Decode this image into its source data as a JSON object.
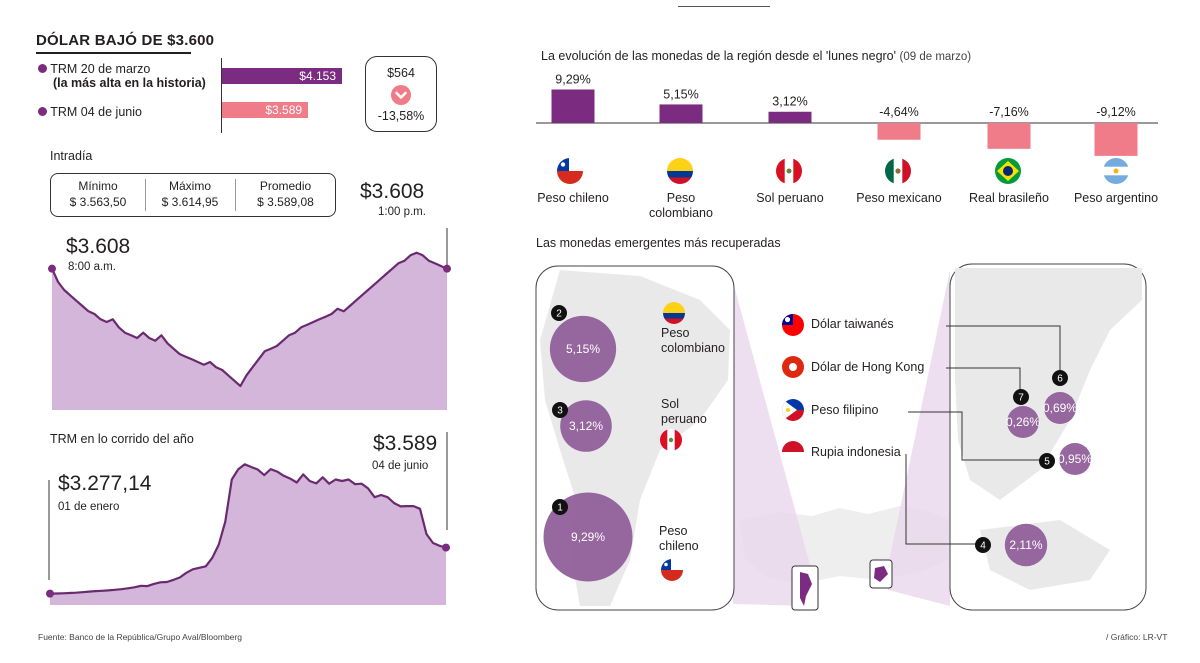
{
  "header": {
    "title": "DÓLAR BAJÓ DE $3.600",
    "trm_high_label_1": "TRM 20 de marzo",
    "trm_high_label_2": "(la más alta en la historia)",
    "trm_high_value": "$4.153",
    "trm_now_label": "TRM 04 de junio",
    "trm_now_value": "$3.589",
    "change_abs": "$564",
    "change_pct": "-13,58%"
  },
  "intraday": {
    "section_title": "Intradía",
    "stats": [
      {
        "label": "Mínimo",
        "value": "$ 3.563,50"
      },
      {
        "label": "Máximo",
        "value": "$ 3.614,95"
      },
      {
        "label": "Promedio",
        "value": "$ 3.589,08"
      }
    ],
    "start_value": "$3.608",
    "start_time": "8:00 a.m.",
    "end_value": "$3.608",
    "end_time": "1:00 p.m."
  },
  "ytd": {
    "section_title": "TRM en lo corrido del año",
    "start_value": "$3.277,14",
    "start_date": "01 de enero",
    "end_value": "$3.589",
    "end_date": "04 de junio"
  },
  "region": {
    "title": "La evolución de las monedas de la región desde el 'lunes negro'",
    "title_note": "(09 de marzo)"
  },
  "recovered": {
    "title": "Las monedas emergentes más recuperadas",
    "latam_labels": {
      "colombia": [
        "Peso",
        "colombiano"
      ],
      "peru": [
        "Sol",
        "peruano"
      ],
      "chile": [
        "Peso",
        "chileno"
      ]
    },
    "asia_labels": {
      "taiwan": "Dólar taiwanés",
      "hongkong": "Dólar de Hong Kong",
      "philippines": "Peso filipino",
      "indonesia": "Rupia indonesia"
    }
  },
  "footer": {
    "source": "Fuente: Banco de la República/Grupo Aval/Bloomberg",
    "credit": "/ Gráfico: LR-VT"
  },
  "colors": {
    "purple": "#7b2c80",
    "pink": "#f07b89",
    "area": "#d3b6d9",
    "bubble": "#8e5a97"
  },
  "chart_data": [
    {
      "type": "bar",
      "id": "trm_compare",
      "categories": [
        "TRM 20 de marzo",
        "TRM 04 de junio"
      ],
      "values": [
        4153,
        3589
      ],
      "labels": [
        "$4.153",
        "$3.589"
      ]
    },
    {
      "type": "area",
      "id": "intraday",
      "values": [
        3608,
        3603,
        3600,
        3598,
        3596,
        3594,
        3592,
        3591,
        3589,
        3588,
        3589,
        3586,
        3584,
        3583,
        3582,
        3584,
        3582,
        3581,
        3583,
        3580,
        3578,
        3576,
        3575,
        3574,
        3573,
        3572,
        3573,
        3571,
        3570,
        3568,
        3566,
        3564,
        3568,
        3571,
        3574,
        3577,
        3578,
        3579,
        3581,
        3583,
        3584,
        3586,
        3587,
        3588,
        3589,
        3590,
        3591,
        3593,
        3592,
        3594,
        3596,
        3598,
        3600,
        3602,
        3604,
        3606,
        3608,
        3610,
        3611,
        3613,
        3614,
        3613,
        3611,
        3610,
        3609,
        3608
      ],
      "ylim": [
        3555,
        3630
      ]
    },
    {
      "type": "area",
      "id": "ytd",
      "values": [
        3277,
        3278,
        3279,
        3281,
        3283,
        3287,
        3291,
        3294,
        3296,
        3299,
        3303,
        3307,
        3313,
        3320,
        3330,
        3328,
        3343,
        3354,
        3356,
        3370,
        3386,
        3418,
        3442,
        3452,
        3462,
        3520,
        3610,
        3765,
        4050,
        4120,
        4153,
        4135,
        4118,
        4080,
        4120,
        4104,
        4075,
        4056,
        4030,
        4085,
        4040,
        4024,
        4065,
        4022,
        4050,
        4040,
        4050,
        4018,
        4022,
        3990,
        3930,
        3945,
        3930,
        3890,
        3868,
        3870,
        3870,
        3852,
        3680,
        3620,
        3601,
        3589
      ],
      "ylim": [
        3200,
        4250
      ]
    },
    {
      "type": "bar",
      "id": "region",
      "title": "La evolución de las monedas de la región desde el 'lunes negro'",
      "categories": [
        "Peso chileno",
        "Peso colombiano",
        "Sol peruano",
        "Peso mexicano",
        "Real brasileño",
        "Peso argentino"
      ],
      "category_lines": [
        [
          "Peso chileno"
        ],
        [
          "Peso",
          "colombiano"
        ],
        [
          "Sol peruano"
        ],
        [
          "Peso mexicano"
        ],
        [
          "Real brasileño"
        ],
        [
          "Peso argentino"
        ]
      ],
      "values": [
        9.29,
        5.15,
        3.12,
        -4.64,
        -7.16,
        -9.12
      ],
      "labels": [
        "9,29%",
        "5,15%",
        "3,12%",
        "-4,64%",
        "-7,16%",
        "-9,12%"
      ]
    },
    {
      "type": "scatter",
      "id": "recovered",
      "title": "Las monedas emergentes más recuperadas",
      "points": [
        {
          "rank": "1",
          "currency": "Peso chileno",
          "value": 9.29,
          "label": "9,29%"
        },
        {
          "rank": "2",
          "currency": "Peso colombiano",
          "value": 5.15,
          "label": "5,15%"
        },
        {
          "rank": "3",
          "currency": "Sol peruano",
          "value": 3.12,
          "label": "3,12%"
        },
        {
          "rank": "4",
          "currency": "Rupia indonesia",
          "value": 2.11,
          "label": "2,11%"
        },
        {
          "rank": "5",
          "currency": "Peso filipino",
          "value": 0.95,
          "label": "0,95%"
        },
        {
          "rank": "6",
          "currency": "Dólar taiwanés",
          "value": 0.69,
          "label": "0,69%"
        },
        {
          "rank": "7",
          "currency": "Dólar de Hong Kong",
          "value": 0.26,
          "label": "0,26%"
        }
      ]
    }
  ]
}
